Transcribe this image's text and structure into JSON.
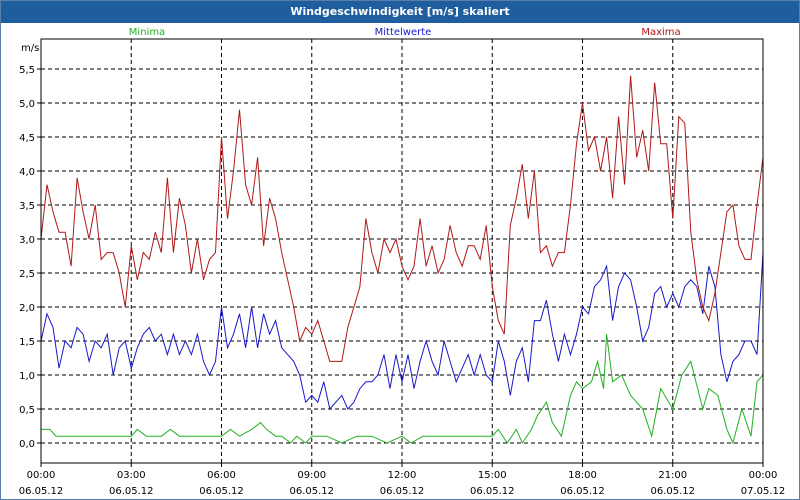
{
  "window": {
    "title": "Windgeschwindigkeit [m/s] skaliert"
  },
  "chart_data": {
    "type": "line",
    "title": "Windgeschwindigkeit [m/s] skaliert",
    "ylabel": "m/s",
    "ylim": [
      -0.3,
      5.85
    ],
    "grid": true,
    "legend_placement": "top",
    "y_ticks": [
      "5,5",
      "5,0",
      "4,5",
      "4,0",
      "3,5",
      "3,0",
      "2,5",
      "2,0",
      "1,5",
      "1,0",
      "0,5",
      "0,0"
    ],
    "x_ticks": [
      {
        "time": "00:00",
        "date": "06.05.12"
      },
      {
        "time": "03:00",
        "date": "06.05.12"
      },
      {
        "time": "06:00",
        "date": "06.05.12"
      },
      {
        "time": "09:00",
        "date": "06.05.12"
      },
      {
        "time": "12:00",
        "date": "06.05.12"
      },
      {
        "time": "15:00",
        "date": "06.05.12"
      },
      {
        "time": "18:00",
        "date": "06.05.12"
      },
      {
        "time": "21:00",
        "date": "06.05.12"
      },
      {
        "time": "00:00",
        "date": "07.05.12"
      }
    ],
    "x_unit": "hours since 06.05.12 00:00",
    "xlim": [
      0,
      24
    ],
    "series": [
      {
        "name": "Minima",
        "color": "#20b020",
        "points": [
          [
            0,
            0.2
          ],
          [
            0.3,
            0.2
          ],
          [
            0.5,
            0.1
          ],
          [
            1,
            0.1
          ],
          [
            2,
            0.1
          ],
          [
            3,
            0.1
          ],
          [
            3.2,
            0.2
          ],
          [
            3.5,
            0.1
          ],
          [
            3.8,
            0.1
          ],
          [
            4,
            0.1
          ],
          [
            4.3,
            0.2
          ],
          [
            4.6,
            0.1
          ],
          [
            5,
            0.1
          ],
          [
            5.5,
            0.1
          ],
          [
            6,
            0.1
          ],
          [
            6.3,
            0.2
          ],
          [
            6.6,
            0.1
          ],
          [
            7,
            0.2
          ],
          [
            7.3,
            0.3
          ],
          [
            7.5,
            0.2
          ],
          [
            7.8,
            0.1
          ],
          [
            8,
            0.1
          ],
          [
            8.3,
            0.0
          ],
          [
            8.5,
            0.1
          ],
          [
            8.8,
            0.0
          ],
          [
            9,
            0.1
          ],
          [
            9.5,
            0.1
          ],
          [
            10,
            0.0
          ],
          [
            10.5,
            0.1
          ],
          [
            11,
            0.1
          ],
          [
            11.5,
            0.0
          ],
          [
            12,
            0.1
          ],
          [
            12.3,
            0.0
          ],
          [
            12.7,
            0.1
          ],
          [
            13,
            0.1
          ],
          [
            13.5,
            0.1
          ],
          [
            14,
            0.1
          ],
          [
            14.5,
            0.1
          ],
          [
            15,
            0.1
          ],
          [
            15.2,
            0.2
          ],
          [
            15.5,
            0.0
          ],
          [
            15.8,
            0.2
          ],
          [
            16,
            0.0
          ],
          [
            16.3,
            0.2
          ],
          [
            16.5,
            0.4
          ],
          [
            16.8,
            0.6
          ],
          [
            17,
            0.3
          ],
          [
            17.3,
            0.1
          ],
          [
            17.6,
            0.7
          ],
          [
            17.8,
            0.9
          ],
          [
            18,
            0.8
          ],
          [
            18.3,
            0.9
          ],
          [
            18.5,
            1.2
          ],
          [
            18.7,
            0.8
          ],
          [
            18.8,
            1.6
          ],
          [
            19,
            0.9
          ],
          [
            19.3,
            1.0
          ],
          [
            19.6,
            0.7
          ],
          [
            20,
            0.5
          ],
          [
            20.3,
            0.1
          ],
          [
            20.6,
            0.8
          ],
          [
            21,
            0.5
          ],
          [
            21.3,
            1.0
          ],
          [
            21.6,
            1.2
          ],
          [
            22,
            0.5
          ],
          [
            22.2,
            0.8
          ],
          [
            22.5,
            0.7
          ],
          [
            22.8,
            0.2
          ],
          [
            23,
            0.0
          ],
          [
            23.3,
            0.5
          ],
          [
            23.6,
            0.1
          ],
          [
            23.8,
            0.9
          ],
          [
            24,
            1.0
          ]
        ]
      },
      {
        "name": "Mittelwerte",
        "color": "#1818c8",
        "points": [
          [
            0,
            1.5
          ],
          [
            0.2,
            1.9
          ],
          [
            0.4,
            1.7
          ],
          [
            0.6,
            1.1
          ],
          [
            0.8,
            1.5
          ],
          [
            1,
            1.4
          ],
          [
            1.2,
            1.7
          ],
          [
            1.4,
            1.6
          ],
          [
            1.6,
            1.2
          ],
          [
            1.8,
            1.5
          ],
          [
            2,
            1.4
          ],
          [
            2.2,
            1.6
          ],
          [
            2.4,
            1.0
          ],
          [
            2.6,
            1.4
          ],
          [
            2.8,
            1.5
          ],
          [
            3,
            1.1
          ],
          [
            3.2,
            1.4
          ],
          [
            3.4,
            1.6
          ],
          [
            3.6,
            1.7
          ],
          [
            3.8,
            1.5
          ],
          [
            4,
            1.6
          ],
          [
            4.2,
            1.3
          ],
          [
            4.4,
            1.6
          ],
          [
            4.6,
            1.3
          ],
          [
            4.8,
            1.5
          ],
          [
            5,
            1.3
          ],
          [
            5.2,
            1.6
          ],
          [
            5.4,
            1.2
          ],
          [
            5.6,
            1.0
          ],
          [
            5.8,
            1.2
          ],
          [
            6,
            2.0
          ],
          [
            6.2,
            1.4
          ],
          [
            6.4,
            1.6
          ],
          [
            6.6,
            1.9
          ],
          [
            6.8,
            1.4
          ],
          [
            7,
            2.0
          ],
          [
            7.2,
            1.4
          ],
          [
            7.4,
            1.9
          ],
          [
            7.6,
            1.6
          ],
          [
            7.8,
            1.8
          ],
          [
            8,
            1.4
          ],
          [
            8.2,
            1.3
          ],
          [
            8.4,
            1.2
          ],
          [
            8.6,
            1.0
          ],
          [
            8.8,
            0.6
          ],
          [
            9,
            0.7
          ],
          [
            9.2,
            0.6
          ],
          [
            9.4,
            0.9
          ],
          [
            9.6,
            0.5
          ],
          [
            9.8,
            0.6
          ],
          [
            10,
            0.7
          ],
          [
            10.2,
            0.5
          ],
          [
            10.4,
            0.6
          ],
          [
            10.6,
            0.8
          ],
          [
            10.8,
            0.9
          ],
          [
            11,
            0.9
          ],
          [
            11.2,
            1.0
          ],
          [
            11.4,
            1.3
          ],
          [
            11.6,
            0.8
          ],
          [
            11.8,
            1.3
          ],
          [
            12,
            0.9
          ],
          [
            12.2,
            1.3
          ],
          [
            12.4,
            0.8
          ],
          [
            12.6,
            1.2
          ],
          [
            12.8,
            1.5
          ],
          [
            13,
            1.2
          ],
          [
            13.2,
            1.0
          ],
          [
            13.4,
            1.5
          ],
          [
            13.6,
            1.2
          ],
          [
            13.8,
            0.9
          ],
          [
            14,
            1.1
          ],
          [
            14.2,
            1.3
          ],
          [
            14.4,
            1.0
          ],
          [
            14.6,
            1.3
          ],
          [
            14.8,
            1.0
          ],
          [
            15,
            0.9
          ],
          [
            15.2,
            1.5
          ],
          [
            15.4,
            1.2
          ],
          [
            15.6,
            0.7
          ],
          [
            15.8,
            1.2
          ],
          [
            16,
            1.4
          ],
          [
            16.2,
            0.9
          ],
          [
            16.4,
            1.8
          ],
          [
            16.6,
            1.8
          ],
          [
            16.8,
            2.1
          ],
          [
            17,
            1.6
          ],
          [
            17.2,
            1.2
          ],
          [
            17.4,
            1.6
          ],
          [
            17.6,
            1.3
          ],
          [
            17.8,
            1.6
          ],
          [
            18,
            2.0
          ],
          [
            18.2,
            1.9
          ],
          [
            18.4,
            2.3
          ],
          [
            18.6,
            2.4
          ],
          [
            18.8,
            2.6
          ],
          [
            19,
            1.8
          ],
          [
            19.2,
            2.3
          ],
          [
            19.4,
            2.5
          ],
          [
            19.6,
            2.4
          ],
          [
            19.8,
            2.0
          ],
          [
            20,
            1.5
          ],
          [
            20.2,
            1.7
          ],
          [
            20.4,
            2.2
          ],
          [
            20.6,
            2.3
          ],
          [
            20.8,
            2.0
          ],
          [
            21,
            2.2
          ],
          [
            21.2,
            2.0
          ],
          [
            21.4,
            2.3
          ],
          [
            21.6,
            2.4
          ],
          [
            21.8,
            2.3
          ],
          [
            22,
            1.9
          ],
          [
            22.2,
            2.6
          ],
          [
            22.4,
            2.3
          ],
          [
            22.6,
            1.3
          ],
          [
            22.8,
            0.9
          ],
          [
            23,
            1.2
          ],
          [
            23.2,
            1.3
          ],
          [
            23.4,
            1.5
          ],
          [
            23.6,
            1.5
          ],
          [
            23.8,
            1.3
          ],
          [
            24,
            2.8
          ]
        ]
      },
      {
        "name": "Maxima",
        "color": "#b01818",
        "points": [
          [
            0,
            3.0
          ],
          [
            0.2,
            3.8
          ],
          [
            0.4,
            3.4
          ],
          [
            0.6,
            3.1
          ],
          [
            0.8,
            3.1
          ],
          [
            1,
            2.6
          ],
          [
            1.2,
            3.9
          ],
          [
            1.4,
            3.4
          ],
          [
            1.6,
            3.0
          ],
          [
            1.8,
            3.5
          ],
          [
            2,
            2.7
          ],
          [
            2.2,
            2.8
          ],
          [
            2.4,
            2.8
          ],
          [
            2.6,
            2.5
          ],
          [
            2.8,
            2.0
          ],
          [
            3,
            2.9
          ],
          [
            3.2,
            2.4
          ],
          [
            3.4,
            2.8
          ],
          [
            3.6,
            2.7
          ],
          [
            3.8,
            3.1
          ],
          [
            4,
            2.8
          ],
          [
            4.2,
            3.9
          ],
          [
            4.4,
            2.8
          ],
          [
            4.6,
            3.6
          ],
          [
            4.8,
            3.2
          ],
          [
            5,
            2.5
          ],
          [
            5.2,
            3.0
          ],
          [
            5.4,
            2.4
          ],
          [
            5.6,
            2.7
          ],
          [
            5.8,
            2.8
          ],
          [
            6,
            4.5
          ],
          [
            6.2,
            3.3
          ],
          [
            6.4,
            4.0
          ],
          [
            6.6,
            4.9
          ],
          [
            6.8,
            3.8
          ],
          [
            7,
            3.5
          ],
          [
            7.2,
            4.2
          ],
          [
            7.4,
            2.9
          ],
          [
            7.6,
            3.6
          ],
          [
            7.8,
            3.3
          ],
          [
            8,
            2.8
          ],
          [
            8.2,
            2.4
          ],
          [
            8.4,
            2.0
          ],
          [
            8.6,
            1.5
          ],
          [
            8.8,
            1.7
          ],
          [
            9,
            1.6
          ],
          [
            9.2,
            1.8
          ],
          [
            9.4,
            1.5
          ],
          [
            9.6,
            1.2
          ],
          [
            9.8,
            1.2
          ],
          [
            10,
            1.2
          ],
          [
            10.2,
            1.7
          ],
          [
            10.4,
            2.0
          ],
          [
            10.6,
            2.3
          ],
          [
            10.8,
            3.3
          ],
          [
            11,
            2.8
          ],
          [
            11.2,
            2.5
          ],
          [
            11.4,
            3.0
          ],
          [
            11.6,
            2.8
          ],
          [
            11.8,
            3.0
          ],
          [
            12,
            2.6
          ],
          [
            12.2,
            2.4
          ],
          [
            12.4,
            2.6
          ],
          [
            12.6,
            3.3
          ],
          [
            12.8,
            2.6
          ],
          [
            13,
            2.9
          ],
          [
            13.2,
            2.5
          ],
          [
            13.4,
            2.7
          ],
          [
            13.6,
            3.2
          ],
          [
            13.8,
            2.8
          ],
          [
            14,
            2.6
          ],
          [
            14.2,
            2.9
          ],
          [
            14.4,
            2.9
          ],
          [
            14.6,
            2.7
          ],
          [
            14.8,
            3.2
          ],
          [
            15,
            2.3
          ],
          [
            15.2,
            1.8
          ],
          [
            15.4,
            1.6
          ],
          [
            15.6,
            3.2
          ],
          [
            15.8,
            3.6
          ],
          [
            16,
            4.1
          ],
          [
            16.2,
            3.3
          ],
          [
            16.4,
            4.0
          ],
          [
            16.6,
            2.8
          ],
          [
            16.8,
            2.9
          ],
          [
            17,
            2.6
          ],
          [
            17.2,
            2.8
          ],
          [
            17.4,
            2.8
          ],
          [
            17.6,
            3.5
          ],
          [
            17.8,
            4.4
          ],
          [
            18,
            5.0
          ],
          [
            18.2,
            4.3
          ],
          [
            18.4,
            4.5
          ],
          [
            18.6,
            4.0
          ],
          [
            18.8,
            4.5
          ],
          [
            19,
            3.6
          ],
          [
            19.2,
            4.8
          ],
          [
            19.4,
            3.8
          ],
          [
            19.6,
            5.4
          ],
          [
            19.8,
            4.2
          ],
          [
            20,
            4.6
          ],
          [
            20.2,
            4.0
          ],
          [
            20.4,
            5.3
          ],
          [
            20.6,
            4.4
          ],
          [
            20.8,
            4.4
          ],
          [
            21,
            3.3
          ],
          [
            21.2,
            4.8
          ],
          [
            21.4,
            4.7
          ],
          [
            21.6,
            3.1
          ],
          [
            21.8,
            2.4
          ],
          [
            22,
            2.0
          ],
          [
            22.2,
            1.8
          ],
          [
            22.4,
            2.2
          ],
          [
            22.6,
            2.8
          ],
          [
            22.8,
            3.4
          ],
          [
            23,
            3.5
          ],
          [
            23.2,
            2.9
          ],
          [
            23.4,
            2.7
          ],
          [
            23.6,
            2.7
          ],
          [
            23.8,
            3.5
          ],
          [
            24,
            4.2
          ]
        ]
      }
    ]
  }
}
